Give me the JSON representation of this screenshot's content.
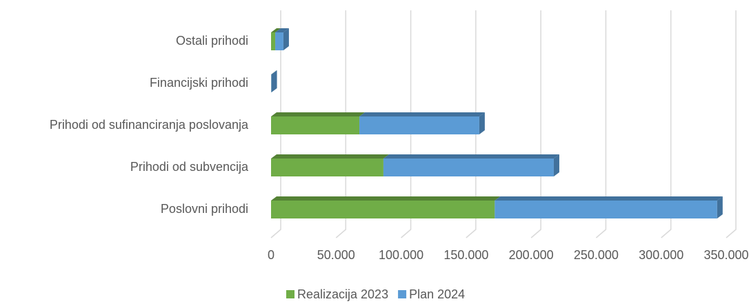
{
  "chart_data": {
    "type": "bar",
    "orientation": "horizontal",
    "stacked": true,
    "categories": [
      "Poslovni prihodi",
      "Prihodi od subvencija",
      "Prihodi od sufinanciranja poslovanja",
      "Financijski prihodi",
      "Ostali prihodi"
    ],
    "series": [
      {
        "name": "Realizacija 2023",
        "color": "#70ad47",
        "values": [
          172000,
          86400,
          67900,
          100,
          3200
        ]
      },
      {
        "name": "Plan 2024",
        "color": "#5b9bd5",
        "values": [
          171000,
          131000,
          92200,
          200,
          6300
        ]
      }
    ],
    "xlim": [
      0,
      350000
    ],
    "xticks": [
      0,
      {
        "value": 50000,
        "label": "50.000"
      },
      {
        "value": 100000,
        "label": "100.000"
      },
      {
        "value": 150000,
        "label": "150.000"
      },
      {
        "value": 200000,
        "label": "200.000"
      },
      {
        "value": 250000,
        "label": "250.000"
      },
      {
        "value": 300000,
        "label": "300.000"
      },
      {
        "value": 350000,
        "label": "350.000"
      }
    ],
    "grid": true,
    "legend": "bottom"
  }
}
